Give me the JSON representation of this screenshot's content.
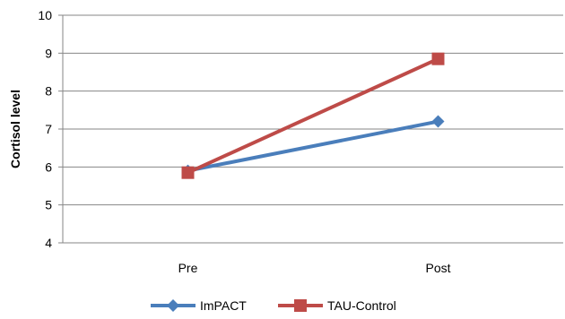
{
  "chart_data": {
    "type": "line",
    "categories": [
      "Pre",
      "Post"
    ],
    "series": [
      {
        "name": "ImPACT",
        "values": [
          5.9,
          7.2
        ],
        "color": "#4a7ebb",
        "marker": "diamond"
      },
      {
        "name": "TAU-Control",
        "values": [
          5.85,
          8.85
        ],
        "color": "#be4b48",
        "marker": "square"
      }
    ],
    "title": "",
    "xlabel": "",
    "ylabel": "Cortisol level",
    "ylim": [
      4,
      10
    ],
    "yticks": [
      "4",
      "5",
      "6",
      "7",
      "8",
      "9",
      "10"
    ],
    "grid": true,
    "legend_position": "bottom"
  }
}
